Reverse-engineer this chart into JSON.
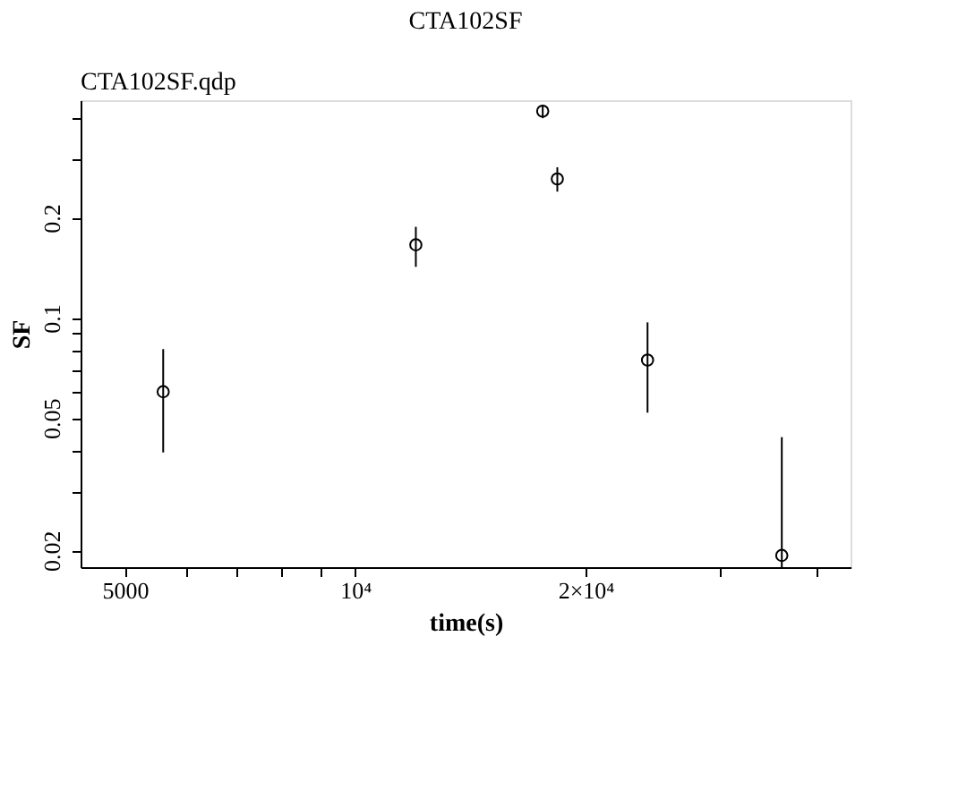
{
  "chart_data": {
    "type": "scatter",
    "title": "CTA102SF",
    "subtitle": "CTA102SF.qdp",
    "xlabel": "time(s)",
    "ylabel": "SF",
    "x": [
      5610,
      12000,
      17580,
      18370,
      24100,
      36100
    ],
    "values": [
      0.06,
      0.166,
      0.419,
      0.262,
      0.0747,
      0.0193
    ],
    "errors": [
      [
        0.0394,
        0.0806
      ],
      [
        0.1425,
        0.188
      ],
      [
        0.399,
        0.438
      ],
      [
        0.24,
        0.284
      ],
      [
        0.0519,
        0.097
      ],
      [
        0.0178,
        0.0438
      ]
    ],
    "color": "#000000",
    "marker": "circle",
    "log": "xy",
    "grid": false,
    "xlim": [
      4375,
      44400
    ],
    "ylim": [
      0.0178,
      0.452
    ],
    "xticks": [
      5000,
      {
        "value": 6000,
        "label": null
      },
      {
        "value": 7000,
        "label": null
      },
      {
        "value": 8000,
        "label": null
      },
      {
        "value": 9000,
        "label": null
      },
      {
        "value": 10000,
        "label": "10⁴"
      },
      {
        "value": 20000,
        "label": "2×10⁴"
      },
      {
        "value": 30000,
        "label": null
      },
      {
        "value": 40000,
        "label": null
      }
    ],
    "yticks": [
      0.02,
      {
        "value": 0.03,
        "label": null
      },
      {
        "value": 0.04,
        "label": null
      },
      0.05,
      {
        "value": 0.06,
        "label": null
      },
      {
        "value": 0.07,
        "label": null
      },
      {
        "value": 0.08,
        "label": null
      },
      {
        "value": 0.09,
        "label": null
      },
      0.1,
      0.2,
      {
        "value": 0.3,
        "label": null
      },
      {
        "value": 0.4,
        "label": null
      }
    ]
  }
}
